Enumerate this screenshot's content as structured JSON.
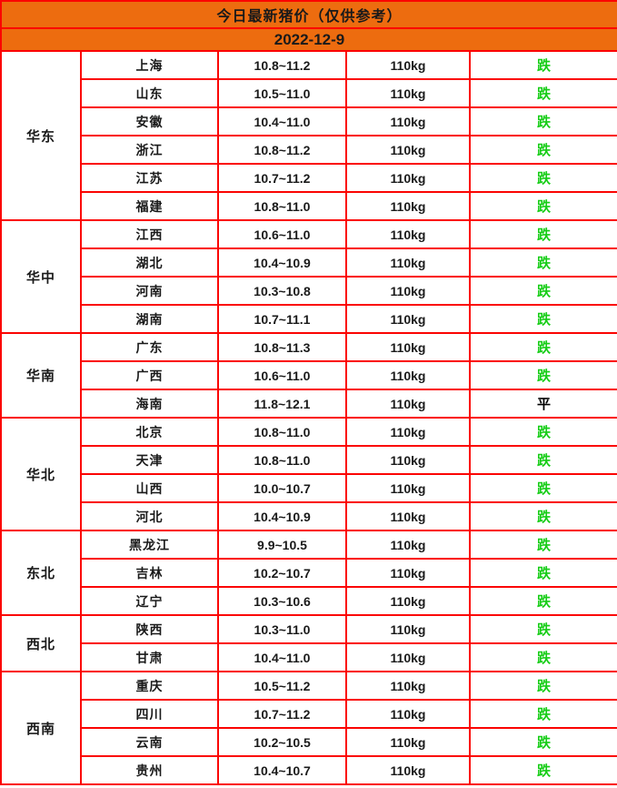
{
  "header": {
    "title": "今日最新猪价（仅供参考）",
    "date": "2022-12-9"
  },
  "colors": {
    "header_orange": "#ED6C0F",
    "border_red": "#FB0402",
    "status_down_green": "#17CD17",
    "status_flat_black": "#000000"
  },
  "table": {
    "columns": [
      "region",
      "province",
      "price_range",
      "weight",
      "status"
    ],
    "regions": [
      {
        "name": "华东",
        "rows": [
          {
            "province": "上海",
            "price": "10.8~11.2",
            "weight": "110kg",
            "status": "跌",
            "status_type": "down"
          },
          {
            "province": "山东",
            "price": "10.5~11.0",
            "weight": "110kg",
            "status": "跌",
            "status_type": "down"
          },
          {
            "province": "安徽",
            "price": "10.4~11.0",
            "weight": "110kg",
            "status": "跌",
            "status_type": "down"
          },
          {
            "province": "浙江",
            "price": "10.8~11.2",
            "weight": "110kg",
            "status": "跌",
            "status_type": "down"
          },
          {
            "province": "江苏",
            "price": "10.7~11.2",
            "weight": "110kg",
            "status": "跌",
            "status_type": "down"
          },
          {
            "province": "福建",
            "price": "10.8~11.0",
            "weight": "110kg",
            "status": "跌",
            "status_type": "down"
          }
        ]
      },
      {
        "name": "华中",
        "rows": [
          {
            "province": "江西",
            "price": "10.6~11.0",
            "weight": "110kg",
            "status": "跌",
            "status_type": "down"
          },
          {
            "province": "湖北",
            "price": "10.4~10.9",
            "weight": "110kg",
            "status": "跌",
            "status_type": "down"
          },
          {
            "province": "河南",
            "price": "10.3~10.8",
            "weight": "110kg",
            "status": "跌",
            "status_type": "down"
          },
          {
            "province": "湖南",
            "price": "10.7~11.1",
            "weight": "110kg",
            "status": "跌",
            "status_type": "down"
          }
        ]
      },
      {
        "name": "华南",
        "rows": [
          {
            "province": "广东",
            "price": "10.8~11.3",
            "weight": "110kg",
            "status": "跌",
            "status_type": "down"
          },
          {
            "province": "广西",
            "price": "10.6~11.0",
            "weight": "110kg",
            "status": "跌",
            "status_type": "down"
          },
          {
            "province": "海南",
            "price": "11.8~12.1",
            "weight": "110kg",
            "status": "平",
            "status_type": "flat"
          }
        ]
      },
      {
        "name": "华北",
        "rows": [
          {
            "province": "北京",
            "price": "10.8~11.0",
            "weight": "110kg",
            "status": "跌",
            "status_type": "down"
          },
          {
            "province": "天津",
            "price": "10.8~11.0",
            "weight": "110kg",
            "status": "跌",
            "status_type": "down"
          },
          {
            "province": "山西",
            "price": "10.0~10.7",
            "weight": "110kg",
            "status": "跌",
            "status_type": "down"
          },
          {
            "province": "河北",
            "price": "10.4~10.9",
            "weight": "110kg",
            "status": "跌",
            "status_type": "down"
          }
        ]
      },
      {
        "name": "东北",
        "rows": [
          {
            "province": "黑龙江",
            "price": "9.9~10.5",
            "weight": "110kg",
            "status": "跌",
            "status_type": "down"
          },
          {
            "province": "吉林",
            "price": "10.2~10.7",
            "weight": "110kg",
            "status": "跌",
            "status_type": "down"
          },
          {
            "province": "辽宁",
            "price": "10.3~10.6",
            "weight": "110kg",
            "status": "跌",
            "status_type": "down"
          }
        ]
      },
      {
        "name": "西北",
        "rows": [
          {
            "province": "陕西",
            "price": "10.3~11.0",
            "weight": "110kg",
            "status": "跌",
            "status_type": "down"
          },
          {
            "province": "甘肃",
            "price": "10.4~11.0",
            "weight": "110kg",
            "status": "跌",
            "status_type": "down"
          }
        ]
      },
      {
        "name": "西南",
        "rows": [
          {
            "province": "重庆",
            "price": "10.5~11.2",
            "weight": "110kg",
            "status": "跌",
            "status_type": "down"
          },
          {
            "province": "四川",
            "price": "10.7~11.2",
            "weight": "110kg",
            "status": "跌",
            "status_type": "down"
          },
          {
            "province": "云南",
            "price": "10.2~10.5",
            "weight": "110kg",
            "status": "跌",
            "status_type": "down"
          },
          {
            "province": "贵州",
            "price": "10.4~10.7",
            "weight": "110kg",
            "status": "跌",
            "status_type": "down"
          }
        ]
      }
    ]
  }
}
